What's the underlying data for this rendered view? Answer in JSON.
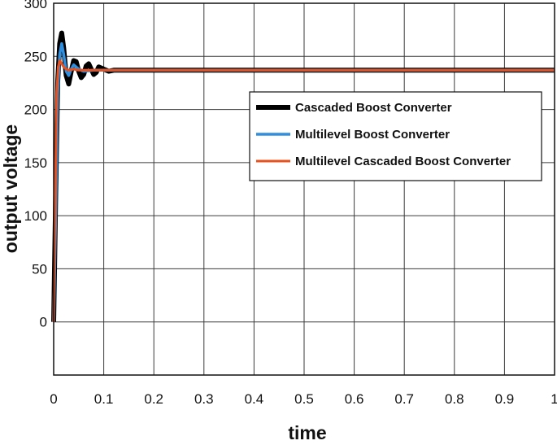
{
  "chart_data": {
    "type": "line",
    "xlabel": "time",
    "ylabel": "output voltage",
    "xlim": [
      0,
      1
    ],
    "ylim": [
      -50,
      300
    ],
    "xticks": [
      0,
      0.1,
      0.2,
      0.3,
      0.4,
      0.5,
      0.6,
      0.7,
      0.8,
      0.9,
      1
    ],
    "xtick_labels": [
      "0",
      "0.1",
      "0.2",
      "0.3",
      "0.4",
      "0.5",
      "0.6",
      "0.7",
      "0.8",
      "0.9",
      "1"
    ],
    "yticks": [
      0,
      50,
      100,
      150,
      200,
      250,
      300
    ],
    "ytick_labels": [
      "0",
      "50",
      "100",
      "150",
      "200",
      "250",
      "300"
    ],
    "grid": true,
    "legend_position": "upper-right",
    "series": [
      {
        "name": "Cascaded Boost Converter",
        "color": "#000000",
        "x": [
          0,
          0.004,
          0.008,
          0.012,
          0.016,
          0.02,
          0.025,
          0.03,
          0.035,
          0.04,
          0.045,
          0.05,
          0.055,
          0.06,
          0.065,
          0.07,
          0.075,
          0.08,
          0.085,
          0.09,
          0.1,
          0.11,
          0.12,
          0.15,
          0.2,
          0.3,
          0.4,
          0.5,
          0.6,
          0.7,
          0.8,
          0.9,
          1
        ],
        "y": [
          0,
          120,
          225,
          262,
          272,
          258,
          232,
          224,
          236,
          246,
          245,
          236,
          230,
          233,
          241,
          243,
          238,
          233,
          235,
          240,
          238,
          236,
          237,
          237,
          237,
          237,
          237,
          237,
          237,
          237,
          237,
          237,
          237
        ]
      },
      {
        "name": "Multilevel Boost Converter",
        "color": "#2f8fde",
        "x": [
          0,
          0.004,
          0.008,
          0.012,
          0.016,
          0.02,
          0.025,
          0.03,
          0.035,
          0.04,
          0.05,
          0.06,
          0.08,
          0.1,
          0.2,
          0.4,
          0.6,
          0.8,
          1
        ],
        "y": [
          0,
          100,
          215,
          252,
          262,
          252,
          236,
          232,
          238,
          242,
          238,
          236,
          237,
          237,
          237,
          237,
          237,
          237,
          237
        ]
      },
      {
        "name": "Multilevel Cascaded Boost Converter",
        "color": "#e8501e",
        "x": [
          0,
          0.003,
          0.006,
          0.009,
          0.012,
          0.015,
          0.02,
          0.025,
          0.03,
          0.04,
          0.05,
          0.07,
          0.1,
          0.2,
          0.4,
          0.6,
          0.8,
          1
        ],
        "y": [
          0,
          110,
          215,
          240,
          246,
          244,
          240,
          238,
          237,
          238,
          237,
          237,
          237,
          237,
          237,
          237,
          237,
          237
        ]
      }
    ]
  }
}
